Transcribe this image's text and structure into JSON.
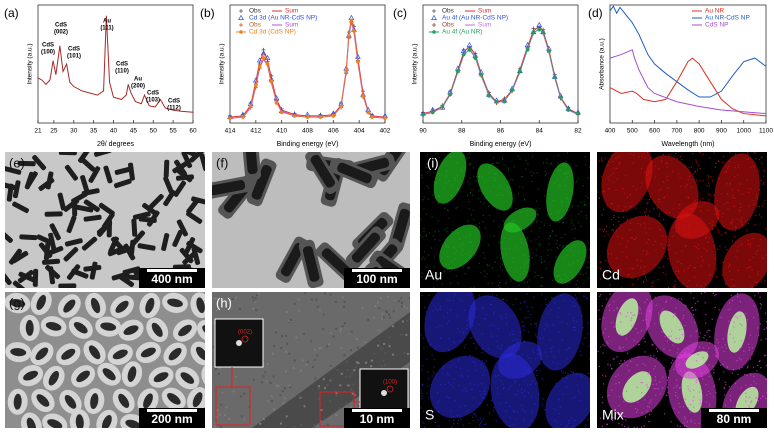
{
  "chart_data": [
    {
      "type": "line",
      "panel_label": "(a)",
      "xlabel": "2θ/ degrees",
      "ylabel": "Intensity (a.u.)",
      "xlim": [
        21,
        60
      ],
      "xticks": [
        21,
        25,
        30,
        35,
        40,
        45,
        50,
        55,
        60
      ],
      "ylim": [
        0,
        110
      ],
      "x": [
        21,
        22,
        23,
        24,
        24.8,
        25.5,
        26.5,
        27.3,
        28.2,
        29,
        30,
        32,
        34,
        36,
        37.5,
        38.2,
        39,
        40,
        42,
        43.2,
        43.7,
        44.4,
        45.5,
        47,
        47.8,
        49,
        50.5,
        51.8,
        53,
        55,
        57,
        60
      ],
      "series": [
        {
          "style": "line",
          "color": "#a52a2a",
          "values": [
            42,
            40,
            36,
            40,
            58,
            45,
            72,
            48,
            55,
            38,
            34,
            30,
            28,
            26,
            30,
            100,
            38,
            24,
            22,
            26,
            36,
            28,
            20,
            18,
            26,
            16,
            15,
            22,
            14,
            12,
            11,
            10
          ]
        }
      ],
      "annotations": [
        [
          "CdS",
          "(100)"
        ],
        [
          "CdS",
          "(002)"
        ],
        [
          "CdS",
          "(101)"
        ],
        [
          "Au",
          "(111)"
        ],
        [
          "CdS",
          "(110)"
        ],
        [
          "Au",
          "(200)"
        ],
        [
          "CdS",
          "(103)"
        ],
        [
          "CdS",
          "(112)"
        ]
      ]
    },
    {
      "type": "line",
      "panel_label": "(b)",
      "xlabel": "Binding energy (eV)",
      "ylabel": "Intensity (a.u.)",
      "xlim": [
        414,
        402
      ],
      "xticks": [
        414,
        412,
        410,
        408,
        406,
        404,
        402
      ],
      "ylim": [
        0,
        100
      ],
      "x": [
        414,
        413,
        412.4,
        412,
        411.7,
        411.4,
        411.1,
        410.8,
        410.4,
        410,
        409,
        408,
        407,
        406,
        405.4,
        405,
        404.8,
        404.6,
        404.4,
        404.1,
        403.7,
        403.3,
        403,
        402
      ],
      "series": [
        {
          "name": "Obs",
          "style": "plus",
          "color": "#555555",
          "values": [
            6,
            7,
            17,
            33,
            50,
            62,
            52,
            40,
            19,
            12,
            8,
            6,
            7,
            8,
            17,
            43,
            77,
            86,
            82,
            53,
            27,
            9,
            7,
            5
          ]
        },
        {
          "name": "Sum",
          "style": "line",
          "color": "#e03030",
          "values": [
            5,
            6,
            15,
            35,
            52,
            60,
            54,
            38,
            20,
            11,
            7,
            6,
            6,
            7,
            15,
            45,
            75,
            88,
            80,
            55,
            25,
            10,
            6,
            5
          ]
        },
        {
          "name": "Cd 3d (Au NR-CdS NP)",
          "style": "triangle",
          "color": "#3050e0",
          "values": [
            5,
            7,
            16,
            36,
            53,
            59,
            55,
            37,
            21,
            10,
            7,
            7,
            6,
            8,
            16,
            46,
            74,
            89,
            79,
            56,
            24,
            11,
            6,
            6
          ]
        },
        {
          "name": "Obs",
          "style": "plus",
          "color": "#c06020",
          "values": [
            4,
            5,
            13,
            30,
            46,
            55,
            50,
            35,
            18,
            10,
            6,
            5,
            5,
            6,
            13,
            42,
            72,
            85,
            78,
            52,
            22,
            9,
            5,
            4
          ]
        },
        {
          "name": "Sum",
          "style": "line",
          "color": "#b050d0",
          "values": [
            4,
            5,
            13,
            31,
            47,
            54,
            49,
            34,
            18,
            10,
            6,
            5,
            5,
            6,
            14,
            43,
            73,
            86,
            77,
            51,
            23,
            9,
            5,
            4
          ]
        },
        {
          "name": "Cd 3d (CdS NP)",
          "style": "circle",
          "color": "#f08020",
          "values": [
            4,
            5,
            14,
            32,
            48,
            55,
            50,
            35,
            17,
            9,
            6,
            5,
            5,
            6,
            14,
            44,
            74,
            87,
            78,
            52,
            23,
            9,
            5,
            4
          ]
        }
      ]
    },
    {
      "type": "line",
      "panel_label": "(c)",
      "xlabel": "Binding energy (eV)",
      "ylabel": "Intensity (a.u.)",
      "xlim": [
        90,
        82
      ],
      "xticks": [
        90,
        88,
        86,
        84,
        82
      ],
      "ylim": [
        0,
        100
      ],
      "x": [
        90,
        89.5,
        89,
        88.6,
        88.2,
        87.9,
        87.6,
        87.3,
        87,
        86.6,
        86.2,
        85.8,
        85.4,
        85,
        84.6,
        84.3,
        84,
        83.8,
        83.5,
        83.2,
        82.9,
        82.5,
        82
      ],
      "series": [
        {
          "name": "Obs",
          "style": "plus",
          "color": "#555555",
          "values": [
            9,
            11,
            15,
            27,
            44,
            62,
            64,
            59,
            41,
            26,
            17,
            21,
            27,
            46,
            64,
            80,
            81,
            79,
            61,
            41,
            21,
            13,
            8
          ]
        },
        {
          "name": "Sum",
          "style": "line",
          "color": "#e03030",
          "values": [
            8,
            10,
            14,
            25,
            45,
            60,
            65,
            58,
            42,
            25,
            18,
            20,
            28,
            45,
            65,
            78,
            82,
            78,
            62,
            40,
            22,
            12,
            8
          ]
        },
        {
          "name": "Au 4f (Au NR-CdS NP)",
          "style": "triangle",
          "color": "#3050e0",
          "values": [
            8,
            11,
            13,
            26,
            46,
            61,
            66,
            57,
            43,
            24,
            19,
            19,
            29,
            44,
            66,
            77,
            83,
            77,
            63,
            39,
            23,
            12,
            9
          ]
        },
        {
          "name": "Obs",
          "style": "plus",
          "color": "#a04020",
          "values": [
            7,
            9,
            13,
            24,
            43,
            58,
            62,
            56,
            40,
            24,
            17,
            19,
            27,
            43,
            63,
            76,
            80,
            76,
            60,
            39,
            21,
            11,
            7
          ]
        },
        {
          "name": "Sum",
          "style": "line",
          "color": "#c070e0",
          "values": [
            7,
            9,
            13,
            24,
            43,
            57,
            63,
            56,
            40,
            24,
            17,
            19,
            27,
            43,
            63,
            76,
            80,
            76,
            60,
            38,
            21,
            11,
            7
          ]
        },
        {
          "name": "Au 4f (Au NR)",
          "style": "circle",
          "color": "#20a060",
          "values": [
            7,
            9,
            14,
            24,
            44,
            58,
            62,
            55,
            41,
            23,
            18,
            18,
            28,
            44,
            62,
            77,
            79,
            77,
            61,
            39,
            22,
            11,
            8
          ]
        }
      ]
    },
    {
      "type": "line",
      "panel_label": "(d)",
      "xlabel": "Wavelength (nm)",
      "ylabel": "Absorbance (a.u.)",
      "xlim": [
        400,
        1100
      ],
      "xticks": [
        400,
        500,
        600,
        700,
        800,
        900,
        1000,
        1100
      ],
      "ylim": [
        0,
        100
      ],
      "series": [
        {
          "name": "Au NR",
          "style": "line",
          "color": "#e03020",
          "x": [
            400,
            450,
            500,
            520,
            550,
            600,
            650,
            700,
            750,
            770,
            800,
            850,
            900,
            950,
            1000,
            1100
          ],
          "values": [
            30,
            25,
            27,
            25,
            20,
            18,
            20,
            35,
            52,
            55,
            50,
            35,
            20,
            12,
            8,
            6
          ]
        },
        {
          "name": "Au NR-CdS NP",
          "style": "line",
          "color": "#1f5fbf",
          "x": [
            400,
            415,
            430,
            445,
            470,
            500,
            530,
            570,
            600,
            650,
            700,
            750,
            800,
            850,
            900,
            950,
            1000,
            1050,
            1100
          ],
          "values": [
            95,
            99,
            93,
            98,
            92,
            85,
            75,
            58,
            50,
            42,
            35,
            28,
            22,
            22,
            27,
            40,
            52,
            55,
            48
          ]
        },
        {
          "name": "CdS NP",
          "style": "line",
          "color": "#a050d0",
          "x": [
            400,
            450,
            500,
            510,
            530,
            570,
            600,
            700,
            800,
            900,
            1100
          ],
          "values": [
            55,
            58,
            62,
            55,
            45,
            30,
            25,
            18,
            14,
            11,
            8
          ]
        }
      ]
    }
  ],
  "images": [
    {
      "label": "(e)",
      "scale_bar": "400 nm"
    },
    {
      "label": "(f)",
      "scale_bar": "100 nm"
    },
    {
      "label": "(g)",
      "scale_bar": "200 nm"
    },
    {
      "label": "(h)",
      "scale_bar": "10 nm",
      "fft_labels": [
        "(002)",
        "(100)"
      ]
    }
  ],
  "mapping": {
    "label": "(i)",
    "maps": [
      {
        "element": "Au",
        "color": "#22c022"
      },
      {
        "element": "Cd",
        "color": "#e01010"
      },
      {
        "element": "S",
        "color": "#2a2ad8"
      },
      {
        "element": "Mix",
        "color": "#e040e0",
        "scale_bar": "80 nm"
      }
    ]
  }
}
